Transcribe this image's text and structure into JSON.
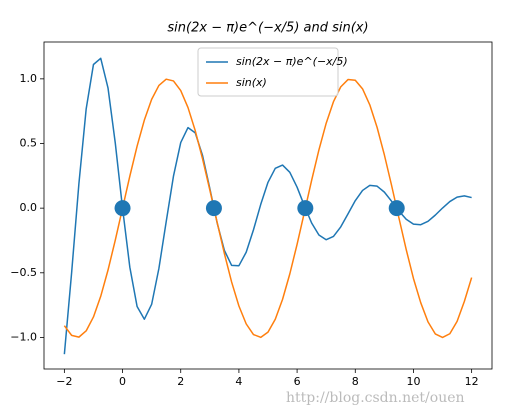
{
  "chart_data": {
    "type": "line",
    "title": "sin(2x − π)e^(−x/5) and sin(x)",
    "x": [
      -2,
      -1.75,
      -1.5,
      -1.25,
      -1,
      -0.75,
      -0.5,
      -0.25,
      0,
      0.25,
      0.5,
      0.75,
      1,
      1.25,
      1.5,
      1.75,
      2,
      2.25,
      2.5,
      2.75,
      3,
      3.25,
      3.5,
      3.75,
      4,
      4.25,
      4.5,
      4.75,
      5,
      5.25,
      5.5,
      5.75,
      6,
      6.25,
      6.5,
      6.75,
      7,
      7.25,
      7.5,
      7.75,
      8,
      8.25,
      8.5,
      8.75,
      9,
      9.25,
      9.5,
      9.75,
      10,
      10.25,
      10.5,
      10.75,
      11,
      11.25,
      11.5,
      11.75,
      12
    ],
    "series": [
      {
        "name": "sin(2x − π)e^(−x/5)",
        "color": "#1f77b4",
        "values": [
          -1.129,
          -0.498,
          0.19,
          0.768,
          1.111,
          1.159,
          0.93,
          0.504,
          0,
          -0.456,
          -0.761,
          -0.859,
          -0.744,
          -0.466,
          -0.105,
          0.247,
          0.507,
          0.623,
          0.582,
          0.407,
          0.153,
          -0.112,
          -0.326,
          -0.443,
          -0.445,
          -0.341,
          -0.168,
          0.029,
          0.2,
          0.308,
          0.333,
          0.277,
          0.162,
          0.019,
          -0.115,
          -0.208,
          -0.244,
          -0.219,
          -0.145,
          -0.044,
          0.058,
          0.137,
          0.176,
          0.17,
          0.124,
          0.053,
          -0.022,
          -0.086,
          -0.124,
          -0.128,
          -0.102,
          -0.054,
          0.001,
          0.051,
          0.085,
          0.095,
          0.082
        ]
      },
      {
        "name": "sin(x)",
        "color": "#ff7f0e",
        "values": [
          -0.9093,
          -0.984,
          -0.9975,
          -0.949,
          -0.8415,
          -0.6816,
          -0.4794,
          -0.2474,
          0,
          0.2474,
          0.4794,
          0.6816,
          0.8415,
          0.949,
          0.9975,
          0.984,
          0.9093,
          0.7781,
          0.5985,
          0.3817,
          0.1411,
          -0.1082,
          -0.3508,
          -0.5716,
          -0.7568,
          -0.895,
          -0.9775,
          -0.9993,
          -0.9589,
          -0.8589,
          -0.7055,
          -0.5083,
          -0.2794,
          -0.0332,
          0.2151,
          0.45,
          0.657,
          0.8231,
          0.938,
          0.9946,
          0.9894,
          0.9226,
          0.7985,
          0.6247,
          0.4121,
          0.1743,
          -0.0752,
          -0.3195,
          -0.544,
          -0.7311,
          -0.8797,
          -0.9726,
          -1.0,
          -0.9713,
          -0.8755,
          -0.721,
          -0.5366
        ]
      }
    ],
    "points": {
      "x": [
        0,
        3.14159,
        6.28319,
        9.42478
      ],
      "values": [
        0,
        0,
        0,
        0
      ],
      "color": "#1f77b4"
    },
    "xlim": [
      -2.7,
      12.7
    ],
    "ylim": [
      -1.244,
      1.285
    ],
    "xticks": [
      {
        "value": -2,
        "label": "−2"
      },
      0,
      2,
      4,
      6,
      8,
      10,
      12
    ],
    "yticks": [
      {
        "value": -1,
        "label": "−1.0"
      },
      {
        "value": -0.5,
        "label": "−0.5"
      },
      {
        "value": 0,
        "label": "0.0"
      },
      {
        "value": 0.5,
        "label": "0.5"
      },
      {
        "value": 1,
        "label": "1.0"
      }
    ],
    "legend": "upper center",
    "watermark": "http://blog.csdn.net/ouen"
  }
}
